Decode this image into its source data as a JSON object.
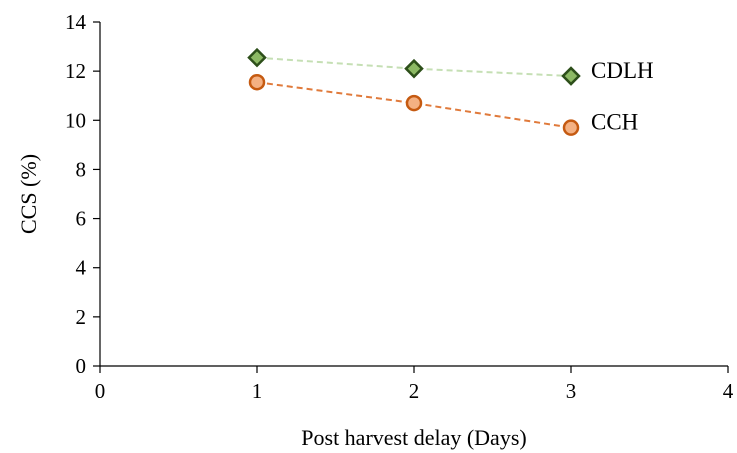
{
  "chart_data": {
    "type": "line",
    "xlabel": "Post harvest  delay (Days)",
    "ylabel": "CCS (%)",
    "xlim": [
      0,
      4
    ],
    "ylim": [
      0,
      14
    ],
    "xticks": [
      0,
      1,
      2,
      3,
      4
    ],
    "yticks": [
      0,
      2,
      4,
      6,
      8,
      10,
      12,
      14
    ],
    "grid": false,
    "legend": "none",
    "series": [
      {
        "name": "CDLH",
        "x": [
          1,
          2,
          3
        ],
        "y": [
          12.55,
          12.1,
          11.8
        ],
        "marker": "diamond",
        "line_color": "#c5dfb4",
        "marker_fill": "#8cb964",
        "marker_edge": "#2d4f1a"
      },
      {
        "name": "CCH",
        "x": [
          1,
          2,
          3
        ],
        "y": [
          11.55,
          10.7,
          9.7
        ],
        "marker": "circle",
        "line_color": "#e07a3b",
        "marker_fill": "#f4b183",
        "marker_edge": "#c55a11"
      }
    ]
  }
}
